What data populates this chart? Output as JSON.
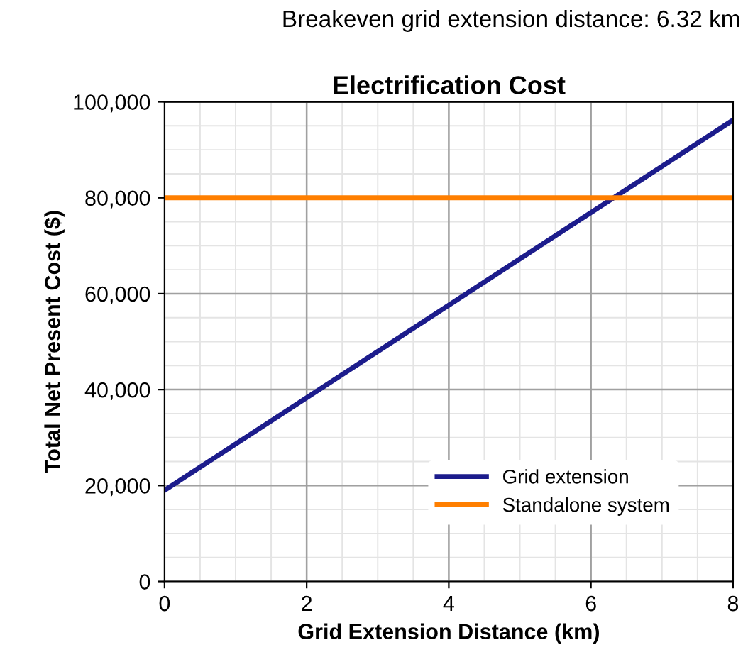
{
  "chart_data": {
    "type": "line",
    "subtitle": "Breakeven grid extension distance: 6.32 km",
    "title": "Electrification Cost",
    "xlabel": "Grid Extension Distance (km)",
    "ylabel": "Total Net Present Cost ($)",
    "x": [
      0,
      8
    ],
    "series": [
      {
        "name": "Grid extension",
        "color": "#1c1c8c",
        "values": [
          19000,
          96200
        ]
      },
      {
        "name": "Standalone system",
        "color": "#ff7f00",
        "values": [
          80000,
          80000
        ]
      }
    ],
    "xlim": [
      0,
      8
    ],
    "xticks": [
      0,
      2,
      4,
      6,
      8
    ],
    "ylim": [
      0,
      100000
    ],
    "yticks": [
      {
        "value": 0,
        "label": "0"
      },
      {
        "value": 20000,
        "label": "20,000"
      },
      {
        "value": 40000,
        "label": "40,000"
      },
      {
        "value": 60000,
        "label": "60,000"
      },
      {
        "value": 80000,
        "label": "80,000"
      },
      {
        "value": 100000,
        "label": "100,000"
      }
    ],
    "grid": true,
    "legend": "lower right",
    "marker": "none",
    "line_style": "solid"
  }
}
